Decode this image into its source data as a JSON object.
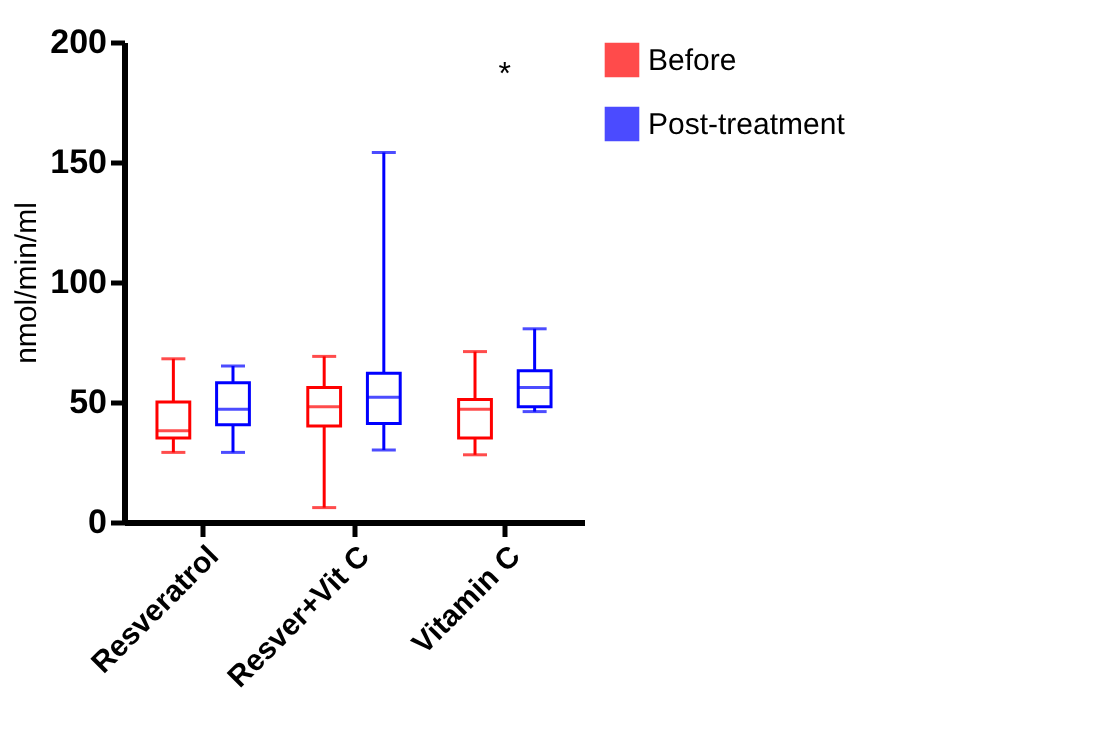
{
  "chart_data": {
    "type": "box",
    "ylabel": "nmol/min/ml",
    "categories": [
      "Resveratrol",
      "Resver+Vit C",
      "Vitamin C"
    ],
    "series": [
      {
        "name": "Before",
        "color": "#ff0000",
        "boxes": [
          {
            "low": 29,
            "q1": 35,
            "median": 38,
            "q3": 50,
            "high": 68
          },
          {
            "low": 6,
            "q1": 40,
            "median": 48,
            "q3": 56,
            "high": 69
          },
          {
            "low": 28,
            "q1": 35,
            "median": 47,
            "q3": 51,
            "high": 71
          }
        ]
      },
      {
        "name": "Post-treatment",
        "color": "#0000ff",
        "boxes": [
          {
            "low": 29,
            "q1": 40.5,
            "median": 47,
            "q3": 58,
            "high": 65
          },
          {
            "low": 30,
            "q1": 41,
            "median": 52,
            "q3": 62,
            "high": 154
          },
          {
            "low": 46,
            "q1": 48,
            "median": 56,
            "q3": 63,
            "high": 80.5
          }
        ]
      }
    ],
    "ylim": [
      0,
      200
    ],
    "yticks": [
      0,
      50,
      100,
      150,
      200
    ],
    "legend": "top right",
    "annotations": [
      "*"
    ]
  }
}
